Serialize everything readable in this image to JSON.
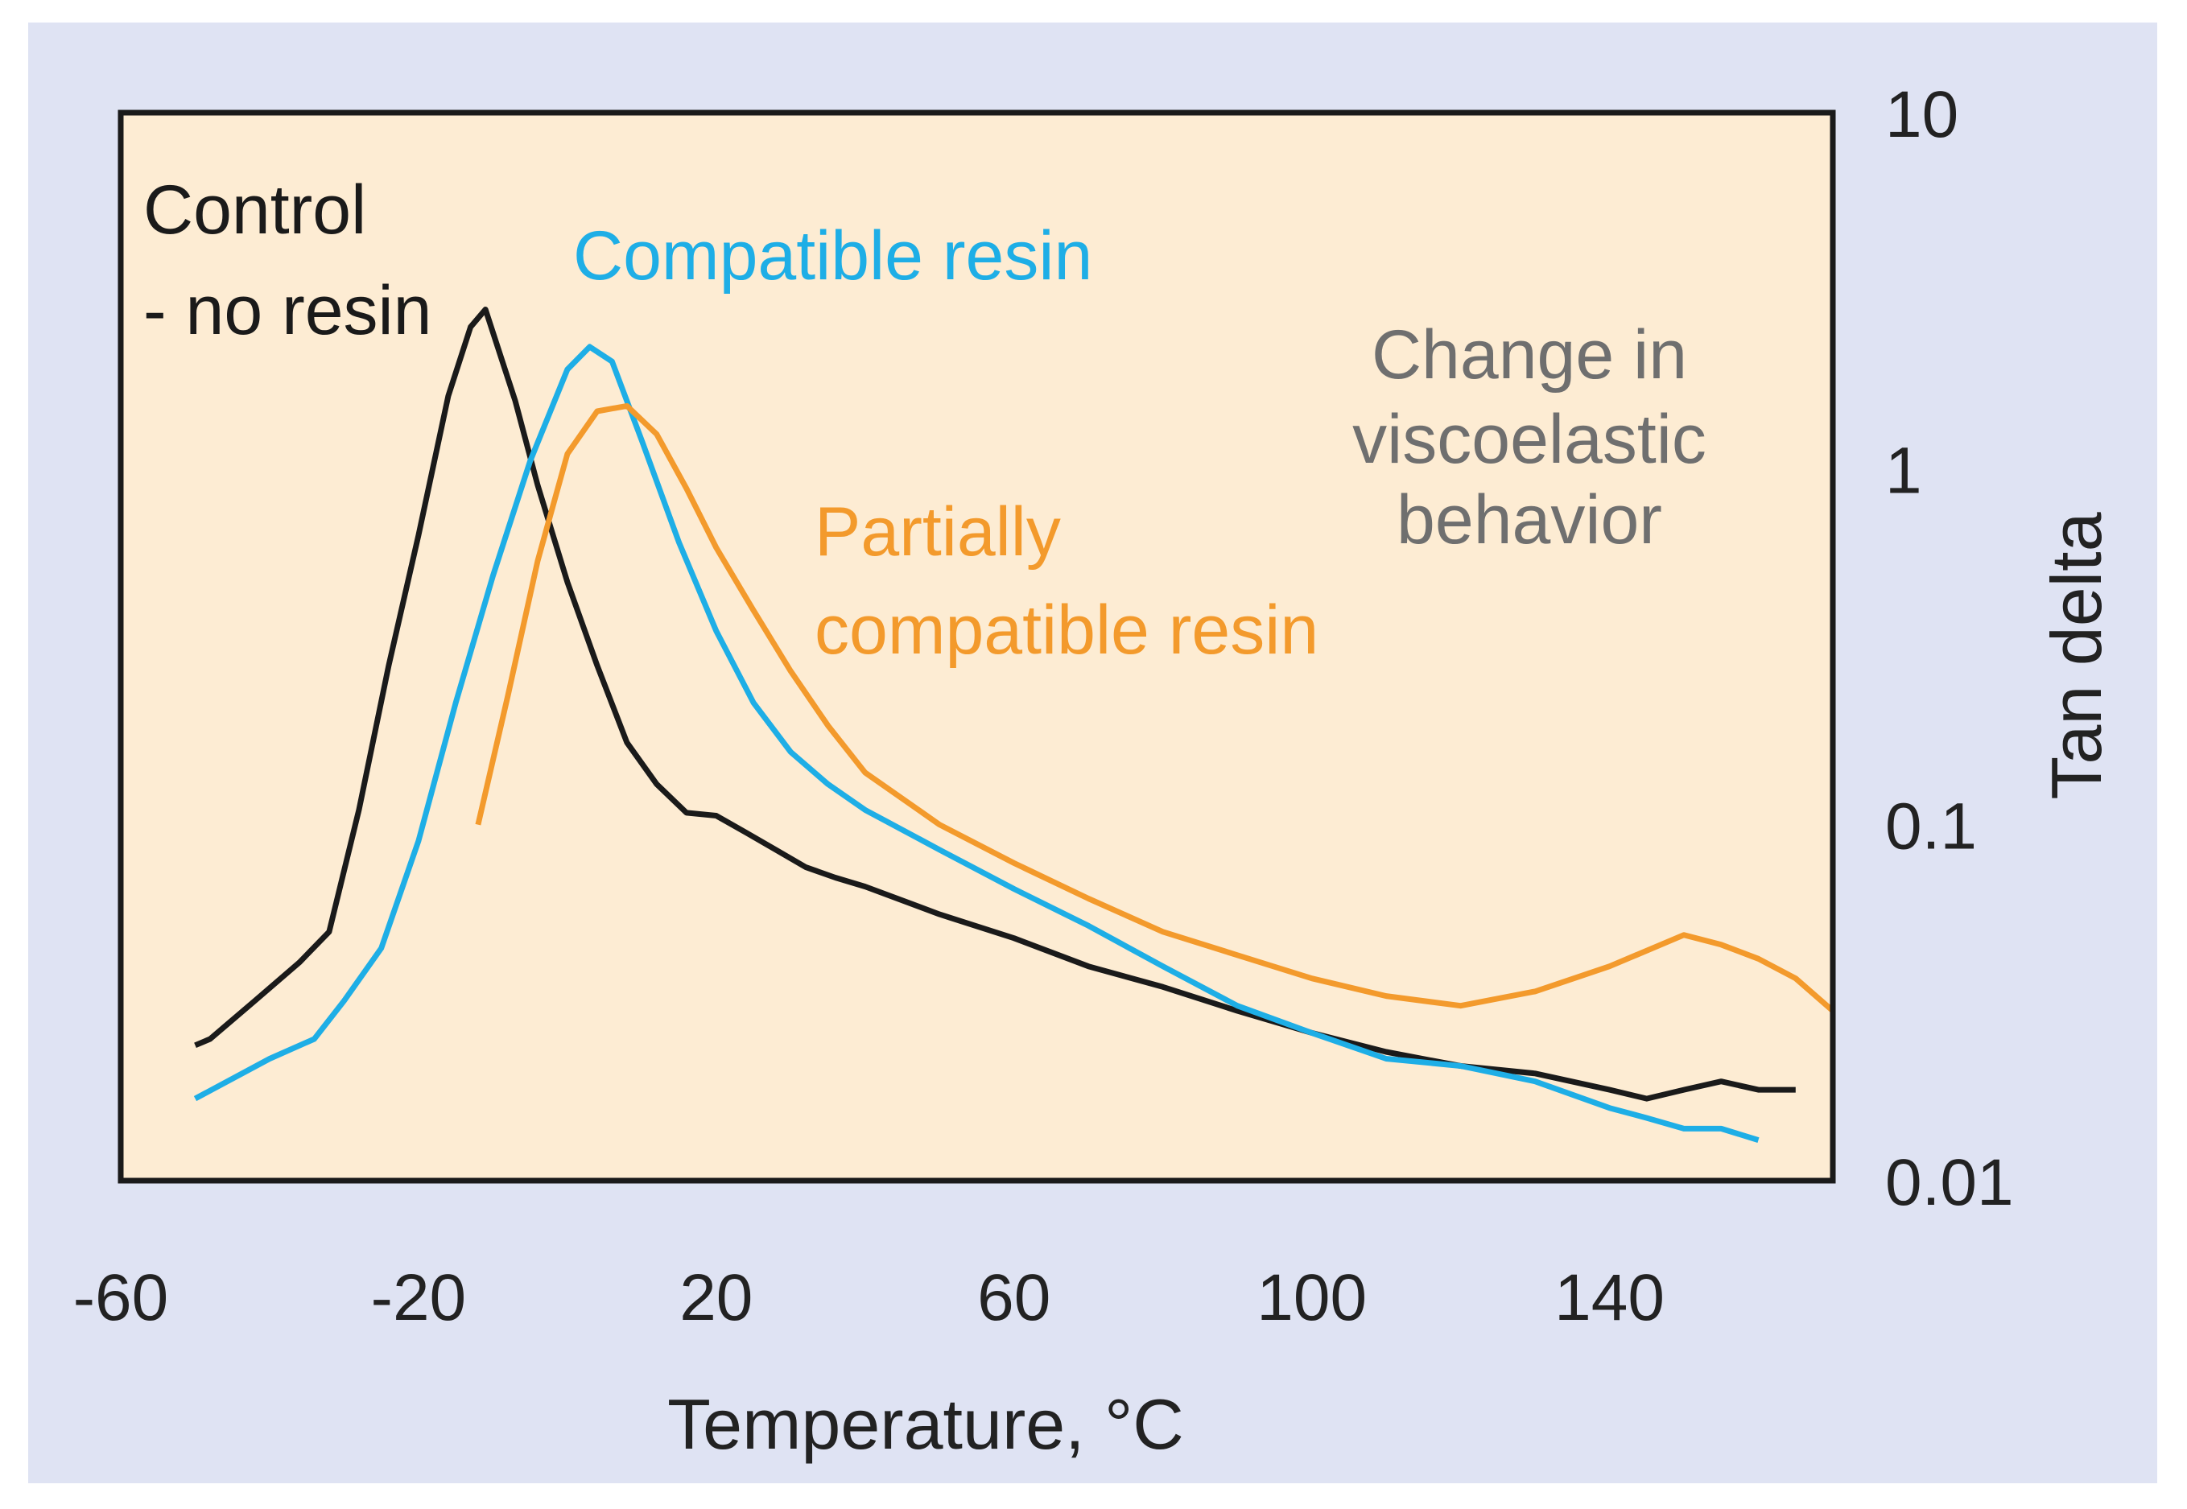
{
  "colors": {
    "outer_bg": "#dfe3f3",
    "plot_bg": "#fdecd3",
    "frame": "#1a1a1a",
    "control": "#1a1a1a",
    "compatible": "#1eaee6",
    "partial": "#f39a2c",
    "note": "#6f6f6f"
  },
  "chart_data": {
    "type": "line",
    "title": "",
    "xlabel": "Temperature, °C",
    "ylabel": "Tan delta",
    "xlim": [
      -60,
      170
    ],
    "ylim": [
      0.01,
      10
    ],
    "yscale": "log",
    "y_axis_side": "right",
    "x_ticks": [
      -60,
      -20,
      20,
      60,
      100,
      140
    ],
    "x_tick_labels": [
      "-60",
      "-20",
      "20",
      "60",
      "100",
      "140"
    ],
    "y_ticks": [
      10,
      1,
      0.1,
      0.01
    ],
    "y_tick_labels": [
      "10",
      "1",
      "0.1",
      "0.01"
    ],
    "series": [
      {
        "name": "Control - no resin",
        "color_key": "control",
        "x": [
          -50,
          -48,
          -42,
          -36,
          -32,
          -28,
          -24,
          -20,
          -16,
          -13,
          -11,
          -7,
          -4,
          0,
          4,
          8,
          12,
          16,
          20,
          24,
          28,
          32,
          36,
          40,
          50,
          60,
          70,
          80,
          90,
          100,
          110,
          120,
          130,
          140,
          145,
          150,
          155,
          160,
          165
        ],
        "y": [
          0.024,
          0.025,
          0.032,
          0.041,
          0.05,
          0.11,
          0.28,
          0.65,
          1.6,
          2.5,
          2.8,
          1.55,
          0.9,
          0.48,
          0.28,
          0.17,
          0.13,
          0.108,
          0.106,
          0.095,
          0.085,
          0.076,
          0.071,
          0.067,
          0.056,
          0.048,
          0.04,
          0.035,
          0.03,
          0.026,
          0.023,
          0.021,
          0.02,
          0.018,
          0.017,
          0.018,
          0.019,
          0.018,
          0.018
        ]
      },
      {
        "name": "Compatible resin",
        "color_key": "compatible",
        "x": [
          -50,
          -40,
          -34,
          -30,
          -25,
          -20,
          -15,
          -10,
          -5,
          0,
          3,
          6,
          10,
          15,
          20,
          25,
          30,
          35,
          40,
          50,
          60,
          70,
          80,
          90,
          100,
          110,
          120,
          130,
          140,
          145,
          150,
          155,
          160
        ],
        "y": [
          0.017,
          0.022,
          0.025,
          0.032,
          0.045,
          0.09,
          0.22,
          0.5,
          1.05,
          1.9,
          2.2,
          2.0,
          1.2,
          0.62,
          0.35,
          0.22,
          0.16,
          0.13,
          0.11,
          0.085,
          0.066,
          0.052,
          0.04,
          0.031,
          0.026,
          0.022,
          0.021,
          0.019,
          0.016,
          0.015,
          0.014,
          0.014,
          0.013
        ]
      },
      {
        "name": "Partially compatible resin",
        "color_key": "partial",
        "x": [
          -12,
          -8,
          -4,
          0,
          4,
          8,
          12,
          16,
          20,
          25,
          30,
          35,
          40,
          50,
          60,
          70,
          80,
          90,
          100,
          110,
          120,
          130,
          140,
          150,
          155,
          160,
          165,
          170
        ],
        "y": [
          0.1,
          0.23,
          0.55,
          1.1,
          1.45,
          1.5,
          1.25,
          0.88,
          0.6,
          0.4,
          0.27,
          0.19,
          0.14,
          0.1,
          0.078,
          0.062,
          0.05,
          0.043,
          0.037,
          0.033,
          0.031,
          0.034,
          0.04,
          0.049,
          0.046,
          0.042,
          0.037,
          0.03
        ]
      }
    ],
    "annotations": [
      {
        "id": "control-line-1",
        "text": "Control",
        "color_key": "control"
      },
      {
        "id": "control-line-2",
        "text": "- no resin",
        "color_key": "control"
      },
      {
        "id": "compatible",
        "text": "Compatible resin",
        "color_key": "compatible"
      },
      {
        "id": "partial-line-1",
        "text": "Partially",
        "color_key": "partial"
      },
      {
        "id": "partial-line-2",
        "text": "compatible resin",
        "color_key": "partial"
      },
      {
        "id": "note-line-1",
        "text": "Change in",
        "color_key": "note"
      },
      {
        "id": "note-line-2",
        "text": "viscoelastic",
        "color_key": "note"
      },
      {
        "id": "note-line-3",
        "text": "behavior",
        "color_key": "note"
      }
    ]
  }
}
